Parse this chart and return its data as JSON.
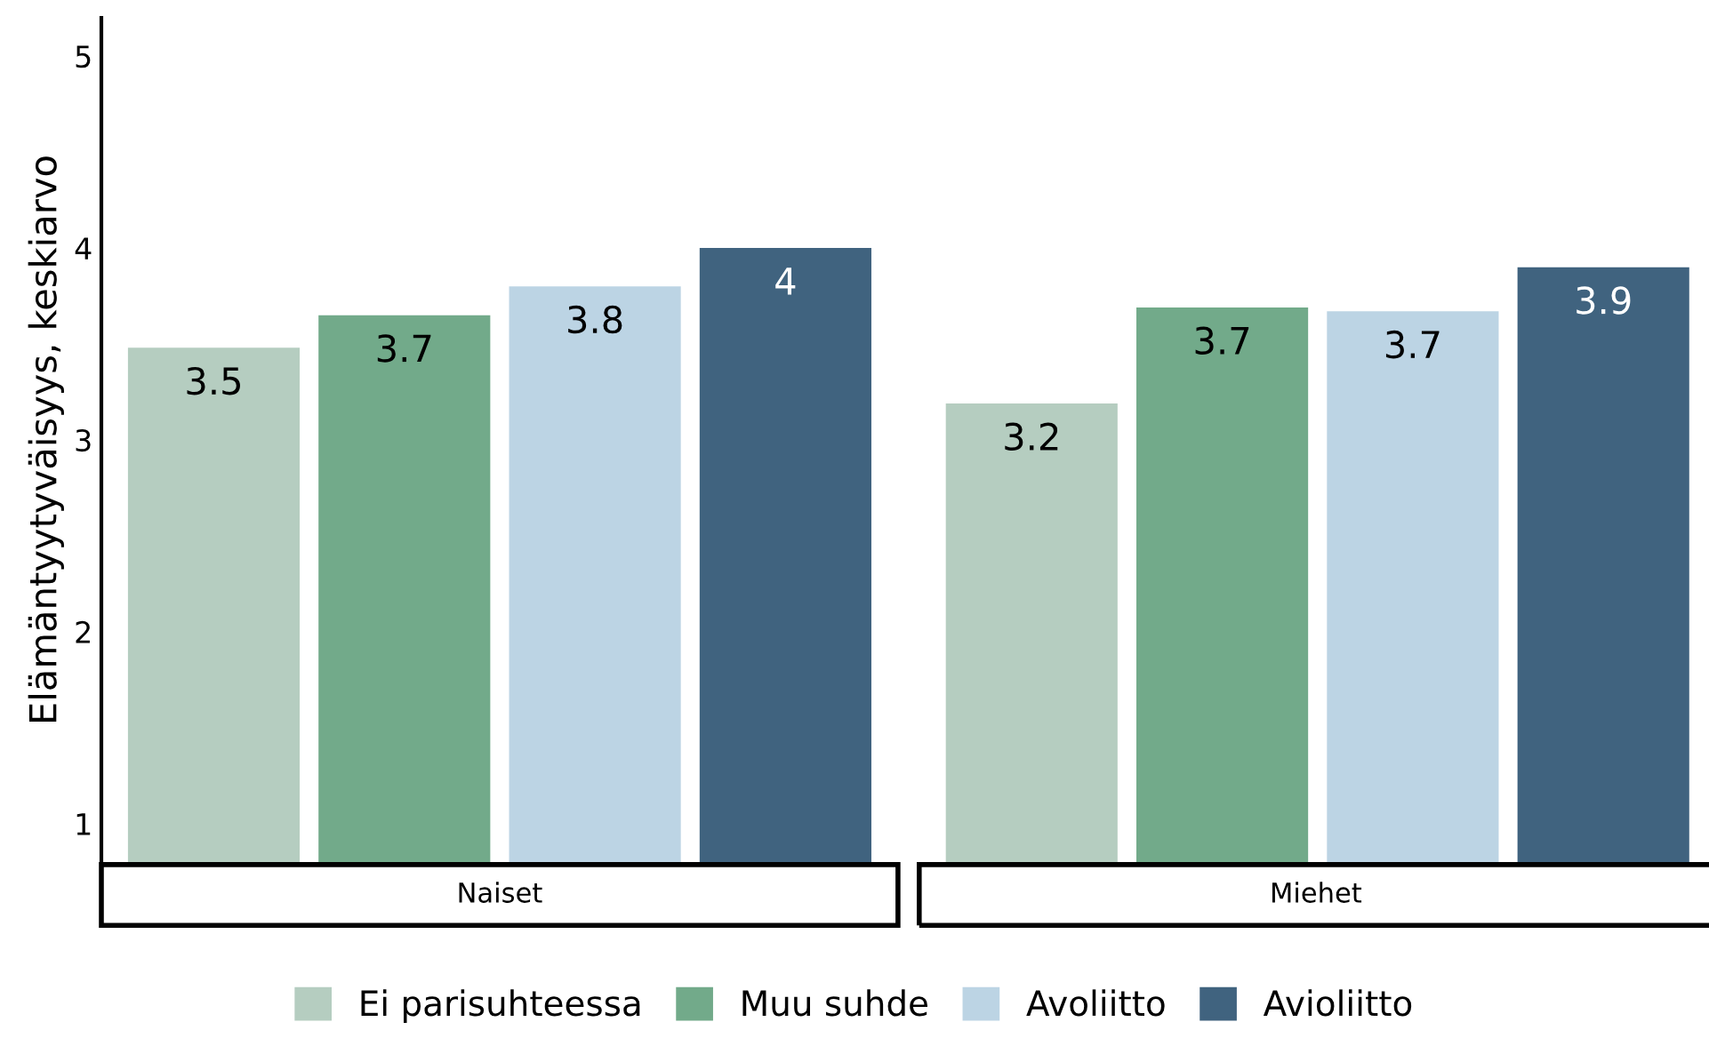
{
  "chart_data": {
    "type": "bar",
    "ylabel": "Elämäntyytyväisyys, keskiarvo",
    "categories": [
      "Naiset",
      "Miehet"
    ],
    "series": [
      {
        "name": "Ei parisuhteessa",
        "color": "#b5cdc0",
        "values": [
          3.48,
          3.19
        ],
        "value_labels": [
          "3.5",
          "3.2"
        ]
      },
      {
        "name": "Muu suhde",
        "color": "#72aa8a",
        "values": [
          3.65,
          3.69
        ],
        "value_labels": [
          "3.7",
          "3.7"
        ]
      },
      {
        "name": "Avoliitto",
        "color": "#bcd4e4",
        "values": [
          3.8,
          3.67
        ],
        "value_labels": [
          "3.8",
          "3.7"
        ]
      },
      {
        "name": "Avioliitto",
        "color": "#40637f",
        "values": [
          4.0,
          3.9
        ],
        "value_labels": [
          "4",
          "3.9"
        ]
      }
    ],
    "ylim": [
      0.8,
      5.2
    ],
    "yticks": [
      1,
      2,
      3,
      4,
      5
    ],
    "grid": false,
    "legend": "bottom"
  }
}
